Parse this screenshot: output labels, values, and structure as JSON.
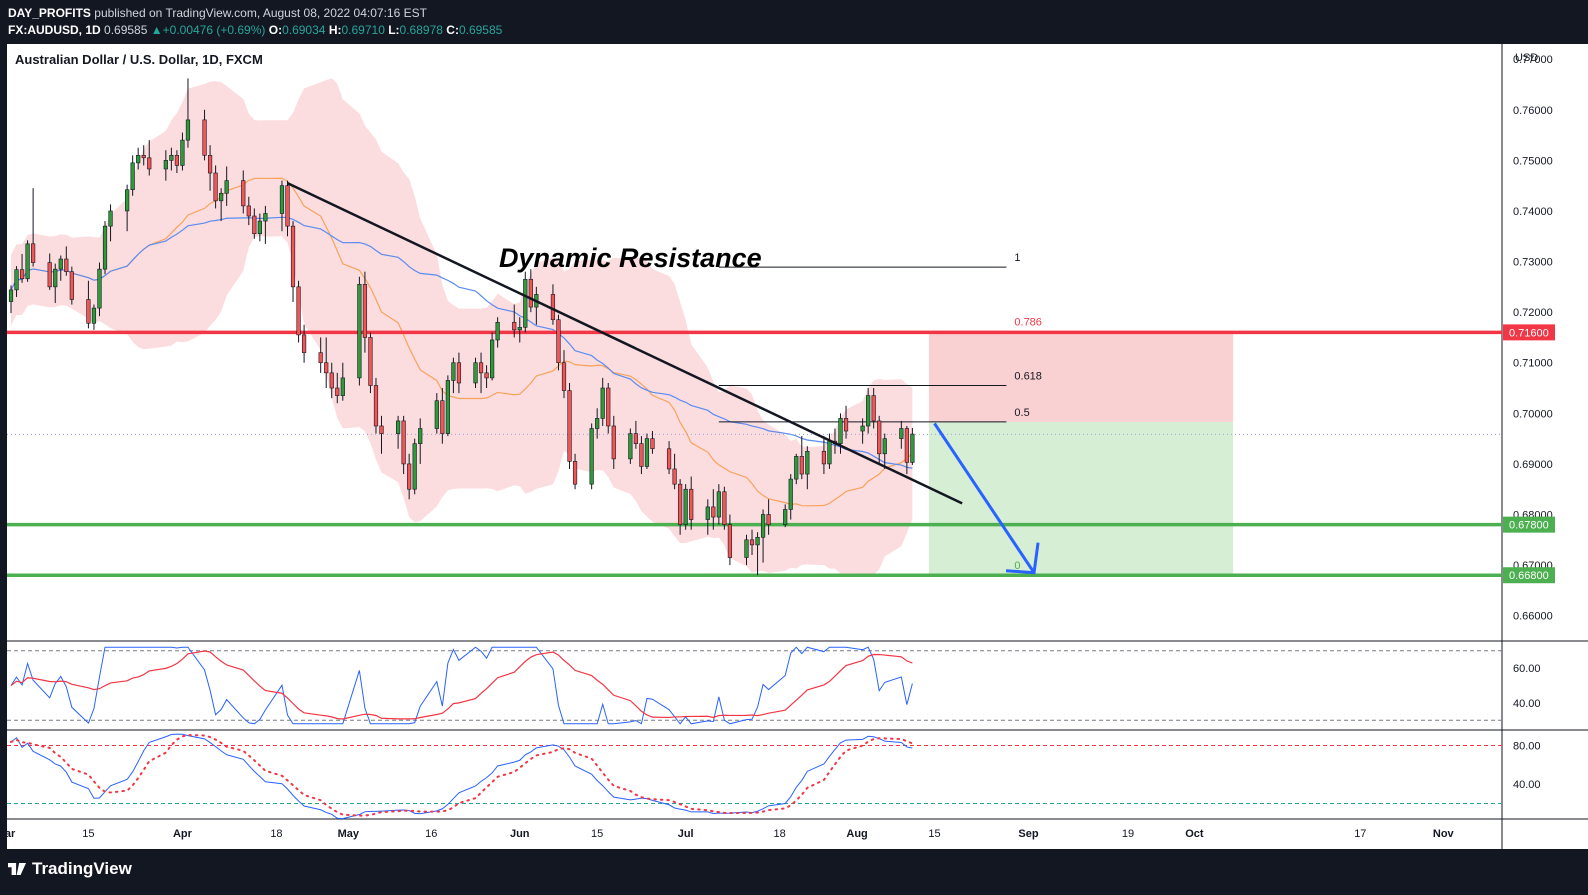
{
  "header": {
    "publisher": "DAY_PROFITS",
    "published_on": "published on TradingView.com, August 08, 2022 04:07:16 EST",
    "symbol": "FX:AUDUSD, 1D",
    "last": "0.69585",
    "change": "+0.00476 (+0.69%)",
    "o_label": "O:",
    "open": "0.69034",
    "h_label": "H:",
    "high": "0.69710",
    "l_label": "L:",
    "low": "0.68978",
    "c_label": "C:",
    "close": "0.69585"
  },
  "chart_title": "Australian Dollar / U.S. Dollar, 1D, FXCM",
  "annotation": "Dynamic Resistance",
  "footer": {
    "brand": "TradingView"
  },
  "chart_data": {
    "type": "candlestick",
    "currency": "USD",
    "y_range": [
      0.655,
      0.773
    ],
    "y_ticks": [
      "0.77000",
      "0.76000",
      "0.75000",
      "0.74000",
      "0.73000",
      "0.72000",
      "0.71000",
      "0.70000",
      "0.69000",
      "0.68000",
      "0.67000",
      "0.66000"
    ],
    "x_ticks": [
      {
        "label": "Mar",
        "d": -1
      },
      {
        "label": "15",
        "d": 14
      },
      {
        "label": "Apr",
        "d": 31
      },
      {
        "label": "18",
        "d": 48
      },
      {
        "label": "May",
        "d": 61
      },
      {
        "label": "16",
        "d": 76
      },
      {
        "label": "Jun",
        "d": 92
      },
      {
        "label": "15",
        "d": 106
      },
      {
        "label": "Jul",
        "d": 122
      },
      {
        "label": "18",
        "d": 139
      },
      {
        "label": "Aug",
        "d": 153
      },
      {
        "label": "15",
        "d": 167
      },
      {
        "label": "Sep",
        "d": 184
      },
      {
        "label": "19",
        "d": 202
      },
      {
        "label": "Oct",
        "d": 214
      },
      {
        "label": "17",
        "d": 244
      },
      {
        "label": "Nov",
        "d": 259
      }
    ],
    "levels": [
      {
        "price": 0.716,
        "label": "0.71600",
        "color": "#f23645"
      },
      {
        "price": 0.678,
        "label": "0.67800",
        "color": "#4caf50"
      },
      {
        "price": 0.668,
        "label": "0.66800",
        "color": "#4caf50"
      }
    ],
    "fib": [
      {
        "ratio": "1",
        "price": 0.7289
      },
      {
        "ratio": "0.786",
        "price": 0.7162
      },
      {
        "ratio": "0.618",
        "price": 0.7055
      },
      {
        "ratio": "0.5",
        "price": 0.6983
      },
      {
        "ratio": "0",
        "price": 0.668
      }
    ],
    "trendline": [
      {
        "d": 50,
        "p": 0.7455
      },
      {
        "d": 172,
        "p": 0.6822
      }
    ],
    "position": {
      "entry": 0.6983,
      "stop": 0.716,
      "target": 0.668,
      "d_start": 166,
      "d_end": 221
    },
    "arrow": [
      {
        "d": 167,
        "p": 0.698
      },
      {
        "d": 185,
        "p": 0.6685
      }
    ],
    "current_price": 0.69585,
    "candles": [
      [
        0.7221,
        0.7253,
        0.7198,
        0.7244
      ],
      [
        0.7244,
        0.7291,
        0.723,
        0.7284
      ],
      [
        0.7284,
        0.7315,
        0.7258,
        0.7266
      ],
      [
        0.7266,
        0.7342,
        0.726,
        0.7335
      ],
      [
        0.7335,
        0.7445,
        0.729,
        0.7298
      ],
      [
        0.7298,
        0.7316,
        0.7244,
        0.725
      ],
      [
        0.725,
        0.7296,
        0.7218,
        0.7285
      ],
      [
        0.7285,
        0.7312,
        0.7262,
        0.7305
      ],
      [
        0.7305,
        0.733,
        0.7272,
        0.728
      ],
      [
        0.728,
        0.729,
        0.7215,
        0.7225
      ],
      [
        0.7225,
        0.7262,
        0.7168,
        0.7178
      ],
      [
        0.7178,
        0.7215,
        0.7165,
        0.7208
      ],
      [
        0.7208,
        0.7298,
        0.7192,
        0.7285
      ],
      [
        0.7285,
        0.738,
        0.7275,
        0.737
      ],
      [
        0.737,
        0.7413,
        0.734,
        0.74
      ],
      [
        0.74,
        0.7452,
        0.736,
        0.7442
      ],
      [
        0.7442,
        0.751,
        0.743,
        0.7495
      ],
      [
        0.7495,
        0.7525,
        0.7482,
        0.751
      ],
      [
        0.751,
        0.753,
        0.749,
        0.7505
      ],
      [
        0.7505,
        0.754,
        0.747,
        0.7483
      ],
      [
        0.7483,
        0.752,
        0.746,
        0.75
      ],
      [
        0.75,
        0.7525,
        0.748,
        0.751
      ],
      [
        0.751,
        0.752,
        0.7475,
        0.749
      ],
      [
        0.749,
        0.7555,
        0.748,
        0.754
      ],
      [
        0.754,
        0.7662,
        0.7525,
        0.758
      ],
      [
        0.758,
        0.76,
        0.75,
        0.751
      ],
      [
        0.751,
        0.753,
        0.744,
        0.7475
      ],
      [
        0.7475,
        0.749,
        0.7405,
        0.742
      ],
      [
        0.742,
        0.7445,
        0.738,
        0.7435
      ],
      [
        0.7435,
        0.7488,
        0.741,
        0.746
      ],
      [
        0.746,
        0.748,
        0.7395,
        0.741
      ],
      [
        0.741,
        0.7428,
        0.7372,
        0.739
      ],
      [
        0.739,
        0.7405,
        0.7345,
        0.7355
      ],
      [
        0.7355,
        0.7395,
        0.734,
        0.738
      ],
      [
        0.738,
        0.741,
        0.7335,
        0.7395
      ],
      [
        0.7395,
        0.746,
        0.736,
        0.745
      ],
      [
        0.745,
        0.746,
        0.735,
        0.737
      ],
      [
        0.737,
        0.738,
        0.722,
        0.725
      ],
      [
        0.725,
        0.7262,
        0.714,
        0.7155
      ],
      [
        0.7155,
        0.7175,
        0.71,
        0.712
      ],
      [
        0.712,
        0.715,
        0.708,
        0.71
      ],
      [
        0.71,
        0.715,
        0.705,
        0.708
      ],
      [
        0.708,
        0.71,
        0.703,
        0.705
      ],
      [
        0.705,
        0.708,
        0.702,
        0.7035
      ],
      [
        0.7035,
        0.71,
        0.7025,
        0.707
      ],
      [
        0.707,
        0.727,
        0.7055,
        0.7255
      ],
      [
        0.7255,
        0.728,
        0.712,
        0.715
      ],
      [
        0.715,
        0.716,
        0.704,
        0.7055
      ],
      [
        0.7055,
        0.707,
        0.696,
        0.6975
      ],
      [
        0.6975,
        0.6995,
        0.692,
        0.696
      ],
      [
        0.696,
        0.6995,
        0.693,
        0.6985
      ],
      [
        0.6985,
        0.6995,
        0.688,
        0.69
      ],
      [
        0.69,
        0.692,
        0.683,
        0.685
      ],
      [
        0.685,
        0.695,
        0.684,
        0.694
      ],
      [
        0.694,
        0.699,
        0.69,
        0.697
      ],
      [
        0.697,
        0.704,
        0.696,
        0.7025
      ],
      [
        0.7025,
        0.705,
        0.694,
        0.696
      ],
      [
        0.696,
        0.7075,
        0.6955,
        0.7065
      ],
      [
        0.7065,
        0.711,
        0.704,
        0.71
      ],
      [
        0.71,
        0.712,
        0.704,
        0.706
      ],
      [
        0.706,
        0.711,
        0.705,
        0.71
      ],
      [
        0.71,
        0.712,
        0.704,
        0.708
      ],
      [
        0.708,
        0.7095,
        0.705,
        0.707
      ],
      [
        0.707,
        0.716,
        0.7065,
        0.7145
      ],
      [
        0.7145,
        0.719,
        0.713,
        0.718
      ],
      [
        0.718,
        0.7215,
        0.715,
        0.7165
      ],
      [
        0.7165,
        0.719,
        0.714,
        0.717
      ],
      [
        0.717,
        0.728,
        0.716,
        0.7265
      ],
      [
        0.7265,
        0.7285,
        0.72,
        0.721
      ],
      [
        0.721,
        0.725,
        0.7175,
        0.7235
      ],
      [
        0.7235,
        0.7255,
        0.7175,
        0.7185
      ],
      [
        0.7185,
        0.7195,
        0.7085,
        0.71
      ],
      [
        0.71,
        0.7125,
        0.703,
        0.7045
      ],
      [
        0.7045,
        0.706,
        0.689,
        0.6905
      ],
      [
        0.6905,
        0.692,
        0.685,
        0.686
      ],
      [
        0.686,
        0.698,
        0.685,
        0.697
      ],
      [
        0.697,
        0.701,
        0.695,
        0.699
      ],
      [
        0.699,
        0.707,
        0.6975,
        0.705
      ],
      [
        0.705,
        0.706,
        0.696,
        0.6975
      ],
      [
        0.6975,
        0.6995,
        0.689,
        0.691
      ],
      [
        0.691,
        0.697,
        0.69,
        0.696
      ],
      [
        0.696,
        0.6985,
        0.693,
        0.694
      ],
      [
        0.694,
        0.6955,
        0.688,
        0.6895
      ],
      [
        0.6895,
        0.696,
        0.689,
        0.695
      ],
      [
        0.695,
        0.6965,
        0.692,
        0.693
      ],
      [
        0.693,
        0.6945,
        0.688,
        0.689
      ],
      [
        0.689,
        0.692,
        0.685,
        0.686
      ],
      [
        0.686,
        0.687,
        0.676,
        0.678
      ],
      [
        0.678,
        0.686,
        0.677,
        0.685
      ],
      [
        0.685,
        0.6875,
        0.677,
        0.679
      ],
      [
        0.679,
        0.683,
        0.676,
        0.6815
      ],
      [
        0.6815,
        0.685,
        0.677,
        0.6795
      ],
      [
        0.6795,
        0.686,
        0.678,
        0.6845
      ],
      [
        0.6845,
        0.6855,
        0.677,
        0.678
      ],
      [
        0.678,
        0.68,
        0.67,
        0.6715
      ],
      [
        0.6715,
        0.676,
        0.67,
        0.675
      ],
      [
        0.675,
        0.677,
        0.672,
        0.674
      ],
      [
        0.674,
        0.6765,
        0.668,
        0.6755
      ],
      [
        0.6755,
        0.681,
        0.6705,
        0.68
      ],
      [
        0.68,
        0.683,
        0.676,
        0.678
      ],
      [
        0.678,
        0.682,
        0.6775,
        0.681
      ],
      [
        0.681,
        0.688,
        0.679,
        0.687
      ],
      [
        0.687,
        0.692,
        0.686,
        0.6915
      ],
      [
        0.6915,
        0.6955,
        0.687,
        0.688
      ],
      [
        0.688,
        0.6935,
        0.685,
        0.6925
      ],
      [
        0.6925,
        0.6955,
        0.688,
        0.69
      ],
      [
        0.69,
        0.696,
        0.689,
        0.6945
      ],
      [
        0.6945,
        0.697,
        0.692,
        0.694
      ],
      [
        0.694,
        0.7,
        0.692,
        0.699
      ],
      [
        0.699,
        0.7015,
        0.695,
        0.6965
      ],
      [
        0.6965,
        0.699,
        0.694,
        0.6975
      ],
      [
        0.6975,
        0.705,
        0.696,
        0.7035
      ],
      [
        0.7035,
        0.705,
        0.697,
        0.6985
      ],
      [
        0.6985,
        0.6995,
        0.69,
        0.692
      ],
      [
        0.692,
        0.696,
        0.689,
        0.695
      ],
      [
        0.695,
        0.6985,
        0.693,
        0.697
      ],
      [
        0.697,
        0.6975,
        0.688,
        0.6903
      ],
      [
        0.6903,
        0.6971,
        0.6898,
        0.6959
      ]
    ],
    "rsi": {
      "ticks": [
        "60.00",
        "40.00"
      ],
      "bands": [
        70,
        30
      ],
      "range": [
        25,
        75
      ]
    },
    "stoch": {
      "ticks": [
        "80.00",
        "40.00"
      ],
      "bands": [
        80,
        20
      ],
      "range": [
        5,
        95
      ]
    }
  }
}
